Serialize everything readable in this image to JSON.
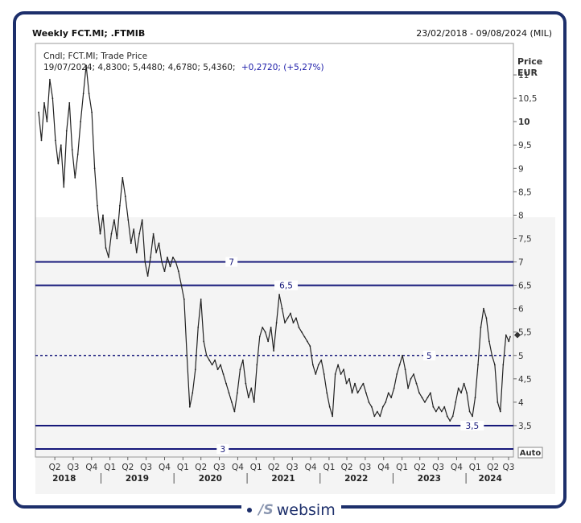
{
  "header": {
    "title": "Weekly FCT.MI; .FTMIB",
    "date_range": "23/02/2018 - 09/08/2024 (MIL)"
  },
  "logo": {
    "text": "websim",
    "icon": "ws-logo-icon"
  },
  "chart_data": {
    "type": "line",
    "legend_line1": "Cndl; FCT.MI; Trade Price",
    "legend_prefix": "19/07/2024; 4,8300; 5,4480; 4,6780; 5,4360;",
    "legend_change": "+0,2720; (+5,27%)",
    "ylabel_line1": "Price",
    "ylabel_line2": "EUR",
    "ylim": [
      3,
      11.5
    ],
    "y_ticks": [
      {
        "value": 11,
        "label": "11",
        "bold": false
      },
      {
        "value": 10.5,
        "label": "10,5",
        "bold": false
      },
      {
        "value": 10,
        "label": "10",
        "bold": true
      },
      {
        "value": 9.5,
        "label": "9,5",
        "bold": false
      },
      {
        "value": 9,
        "label": "9",
        "bold": false
      },
      {
        "value": 8.5,
        "label": "8,5",
        "bold": false
      },
      {
        "value": 8,
        "label": "8",
        "bold": false
      },
      {
        "value": 7.5,
        "label": "7,5",
        "bold": false
      },
      {
        "value": 7,
        "label": "7",
        "bold": false
      },
      {
        "value": 6.5,
        "label": "6,5",
        "bold": false
      },
      {
        "value": 6,
        "label": "6",
        "bold": false
      },
      {
        "value": 5.5,
        "label": "5,5",
        "bold": false
      },
      {
        "value": 5,
        "label": "5",
        "bold": false
      },
      {
        "value": 4.5,
        "label": "4,5",
        "bold": false
      },
      {
        "value": 4,
        "label": "4",
        "bold": false
      },
      {
        "value": 3.5,
        "label": "3,5",
        "bold": false
      }
    ],
    "auto_label": "Auto",
    "x_start": "2018-02-23",
    "x_end": "2024-08-09",
    "quarter_ticks": [
      {
        "date": "2018-05-15",
        "label": "Q2"
      },
      {
        "date": "2018-08-15",
        "label": "Q3"
      },
      {
        "date": "2018-11-15",
        "label": "Q4"
      },
      {
        "date": "2019-02-15",
        "label": "Q1"
      },
      {
        "date": "2019-05-15",
        "label": "Q2"
      },
      {
        "date": "2019-08-15",
        "label": "Q3"
      },
      {
        "date": "2019-11-15",
        "label": "Q4"
      },
      {
        "date": "2020-02-15",
        "label": "Q1"
      },
      {
        "date": "2020-05-15",
        "label": "Q2"
      },
      {
        "date": "2020-08-15",
        "label": "Q3"
      },
      {
        "date": "2020-11-15",
        "label": "Q4"
      },
      {
        "date": "2021-02-15",
        "label": "Q1"
      },
      {
        "date": "2021-05-15",
        "label": "Q2"
      },
      {
        "date": "2021-08-15",
        "label": "Q3"
      },
      {
        "date": "2021-11-15",
        "label": "Q4"
      },
      {
        "date": "2022-02-15",
        "label": "Q1"
      },
      {
        "date": "2022-05-15",
        "label": "Q2"
      },
      {
        "date": "2022-08-15",
        "label": "Q3"
      },
      {
        "date": "2022-11-15",
        "label": "Q4"
      },
      {
        "date": "2023-02-15",
        "label": "Q1"
      },
      {
        "date": "2023-05-15",
        "label": "Q2"
      },
      {
        "date": "2023-08-15",
        "label": "Q3"
      },
      {
        "date": "2023-11-15",
        "label": "Q4"
      },
      {
        "date": "2024-02-15",
        "label": "Q1"
      },
      {
        "date": "2024-05-15",
        "label": "Q2"
      },
      {
        "date": "2024-08-01",
        "label": "Q3"
      }
    ],
    "year_labels": [
      {
        "date": "2018-07-01",
        "label": "2018"
      },
      {
        "date": "2019-07-01",
        "label": "2019"
      },
      {
        "date": "2020-07-01",
        "label": "2020"
      },
      {
        "date": "2021-07-01",
        "label": "2021"
      },
      {
        "date": "2022-07-01",
        "label": "2022"
      },
      {
        "date": "2023-07-01",
        "label": "2023"
      },
      {
        "date": "2024-05-01",
        "label": "2024"
      }
    ],
    "year_boundaries": [
      "2019-01-01",
      "2020-01-01",
      "2021-01-01",
      "2022-01-01",
      "2023-01-01",
      "2024-01-01"
    ],
    "horizontal_lines": [
      {
        "value": 7,
        "label": "7",
        "label_date": "2020-10-15",
        "dashed": false
      },
      {
        "value": 6.5,
        "label": "6,5",
        "label_date": "2021-07-15",
        "dashed": false
      },
      {
        "value": 5,
        "label": "5",
        "label_date": "2023-07-01",
        "dashed": true
      },
      {
        "value": 3.5,
        "label": "3,5",
        "label_date": "2024-02-01",
        "dashed": false
      },
      {
        "value": 3,
        "label": "3",
        "label_date": "2020-09-01",
        "dashed": false
      }
    ],
    "last_price": 5.436,
    "series": [
      {
        "points": [
          [
            "2018-02-23",
            10.2
          ],
          [
            "2018-03-09",
            9.6
          ],
          [
            "2018-03-23",
            10.4
          ],
          [
            "2018-04-06",
            10.0
          ],
          [
            "2018-04-20",
            10.9
          ],
          [
            "2018-05-04",
            10.5
          ],
          [
            "2018-05-18",
            9.6
          ],
          [
            "2018-06-01",
            9.1
          ],
          [
            "2018-06-15",
            9.5
          ],
          [
            "2018-06-29",
            8.6
          ],
          [
            "2018-07-13",
            9.8
          ],
          [
            "2018-07-27",
            10.4
          ],
          [
            "2018-08-10",
            9.4
          ],
          [
            "2018-08-24",
            8.8
          ],
          [
            "2018-09-07",
            9.3
          ],
          [
            "2018-09-21",
            10.0
          ],
          [
            "2018-10-05",
            10.6
          ],
          [
            "2018-10-19",
            11.2
          ],
          [
            "2018-11-02",
            10.6
          ],
          [
            "2018-11-16",
            10.2
          ],
          [
            "2018-11-30",
            9.0
          ],
          [
            "2018-12-14",
            8.2
          ],
          [
            "2018-12-28",
            7.6
          ],
          [
            "2019-01-11",
            8.0
          ],
          [
            "2019-01-25",
            7.3
          ],
          [
            "2019-02-08",
            7.1
          ],
          [
            "2019-02-22",
            7.6
          ],
          [
            "2019-03-08",
            7.9
          ],
          [
            "2019-03-22",
            7.5
          ],
          [
            "2019-04-05",
            8.2
          ],
          [
            "2019-04-19",
            8.8
          ],
          [
            "2019-05-03",
            8.4
          ],
          [
            "2019-05-17",
            7.9
          ],
          [
            "2019-05-31",
            7.4
          ],
          [
            "2019-06-14",
            7.7
          ],
          [
            "2019-06-28",
            7.2
          ],
          [
            "2019-07-12",
            7.6
          ],
          [
            "2019-07-26",
            7.9
          ],
          [
            "2019-08-09",
            7.0
          ],
          [
            "2019-08-23",
            6.7
          ],
          [
            "2019-09-06",
            7.1
          ],
          [
            "2019-09-20",
            7.6
          ],
          [
            "2019-10-04",
            7.2
          ],
          [
            "2019-10-18",
            7.4
          ],
          [
            "2019-11-01",
            7.0
          ],
          [
            "2019-11-15",
            6.8
          ],
          [
            "2019-11-29",
            7.1
          ],
          [
            "2019-12-13",
            6.9
          ],
          [
            "2019-12-27",
            7.1
          ],
          [
            "2020-01-10",
            7.0
          ],
          [
            "2020-01-24",
            6.8
          ],
          [
            "2020-02-07",
            6.5
          ],
          [
            "2020-02-21",
            6.2
          ],
          [
            "2020-03-06",
            5.0
          ],
          [
            "2020-03-20",
            3.9
          ],
          [
            "2020-04-03",
            4.2
          ],
          [
            "2020-04-17",
            4.7
          ],
          [
            "2020-05-01",
            5.6
          ],
          [
            "2020-05-15",
            6.2
          ],
          [
            "2020-05-29",
            5.3
          ],
          [
            "2020-06-12",
            5.0
          ],
          [
            "2020-06-26",
            4.9
          ],
          [
            "2020-07-10",
            4.8
          ],
          [
            "2020-07-24",
            4.9
          ],
          [
            "2020-08-07",
            4.7
          ],
          [
            "2020-08-21",
            4.8
          ],
          [
            "2020-09-04",
            4.6
          ],
          [
            "2020-09-18",
            4.4
          ],
          [
            "2020-10-02",
            4.2
          ],
          [
            "2020-10-16",
            4.0
          ],
          [
            "2020-10-30",
            3.8
          ],
          [
            "2020-11-13",
            4.2
          ],
          [
            "2020-11-27",
            4.7
          ],
          [
            "2020-12-11",
            4.9
          ],
          [
            "2020-12-25",
            4.4
          ],
          [
            "2021-01-08",
            4.1
          ],
          [
            "2021-01-22",
            4.3
          ],
          [
            "2021-02-05",
            4.0
          ],
          [
            "2021-02-19",
            4.8
          ],
          [
            "2021-03-05",
            5.4
          ],
          [
            "2021-03-19",
            5.6
          ],
          [
            "2021-04-02",
            5.5
          ],
          [
            "2021-04-16",
            5.3
          ],
          [
            "2021-04-30",
            5.6
          ],
          [
            "2021-05-14",
            5.1
          ],
          [
            "2021-05-28",
            5.7
          ],
          [
            "2021-06-11",
            6.3
          ],
          [
            "2021-06-25",
            6.0
          ],
          [
            "2021-07-09",
            5.7
          ],
          [
            "2021-07-23",
            5.8
          ],
          [
            "2021-08-06",
            5.9
          ],
          [
            "2021-08-20",
            5.7
          ],
          [
            "2021-09-03",
            5.8
          ],
          [
            "2021-09-17",
            5.6
          ],
          [
            "2021-10-01",
            5.5
          ],
          [
            "2021-10-15",
            5.4
          ],
          [
            "2021-10-29",
            5.3
          ],
          [
            "2021-11-12",
            5.2
          ],
          [
            "2021-11-26",
            4.8
          ],
          [
            "2021-12-10",
            4.6
          ],
          [
            "2021-12-24",
            4.8
          ],
          [
            "2022-01-07",
            4.9
          ],
          [
            "2022-01-21",
            4.6
          ],
          [
            "2022-02-04",
            4.2
          ],
          [
            "2022-02-18",
            3.9
          ],
          [
            "2022-03-04",
            3.7
          ],
          [
            "2022-03-18",
            4.6
          ],
          [
            "2022-04-01",
            4.8
          ],
          [
            "2022-04-15",
            4.6
          ],
          [
            "2022-04-29",
            4.7
          ],
          [
            "2022-05-13",
            4.4
          ],
          [
            "2022-05-27",
            4.5
          ],
          [
            "2022-06-10",
            4.2
          ],
          [
            "2022-06-24",
            4.4
          ],
          [
            "2022-07-08",
            4.2
          ],
          [
            "2022-07-22",
            4.3
          ],
          [
            "2022-08-05",
            4.4
          ],
          [
            "2022-08-19",
            4.2
          ],
          [
            "2022-09-02",
            4.0
          ],
          [
            "2022-09-16",
            3.9
          ],
          [
            "2022-09-30",
            3.7
          ],
          [
            "2022-10-14",
            3.8
          ],
          [
            "2022-10-28",
            3.7
          ],
          [
            "2022-11-11",
            3.9
          ],
          [
            "2022-11-25",
            4.0
          ],
          [
            "2022-12-09",
            4.2
          ],
          [
            "2022-12-23",
            4.1
          ],
          [
            "2023-01-06",
            4.3
          ],
          [
            "2023-01-20",
            4.6
          ],
          [
            "2023-02-03",
            4.8
          ],
          [
            "2023-02-17",
            5.0
          ],
          [
            "2023-03-03",
            4.7
          ],
          [
            "2023-03-17",
            4.3
          ],
          [
            "2023-03-31",
            4.5
          ],
          [
            "2023-04-14",
            4.6
          ],
          [
            "2023-04-28",
            4.4
          ],
          [
            "2023-05-12",
            4.2
          ],
          [
            "2023-05-26",
            4.1
          ],
          [
            "2023-06-09",
            4.0
          ],
          [
            "2023-06-23",
            4.1
          ],
          [
            "2023-07-07",
            4.2
          ],
          [
            "2023-07-21",
            3.9
          ],
          [
            "2023-08-04",
            3.8
          ],
          [
            "2023-08-18",
            3.9
          ],
          [
            "2023-09-01",
            3.8
          ],
          [
            "2023-09-15",
            3.9
          ],
          [
            "2023-09-29",
            3.7
          ],
          [
            "2023-10-13",
            3.6
          ],
          [
            "2023-10-27",
            3.7
          ],
          [
            "2023-11-10",
            4.0
          ],
          [
            "2023-11-24",
            4.3
          ],
          [
            "2023-12-08",
            4.2
          ],
          [
            "2023-12-22",
            4.4
          ],
          [
            "2024-01-05",
            4.2
          ],
          [
            "2024-01-19",
            3.8
          ],
          [
            "2024-02-02",
            3.7
          ],
          [
            "2024-02-16",
            4.1
          ],
          [
            "2024-03-01",
            4.8
          ],
          [
            "2024-03-15",
            5.6
          ],
          [
            "2024-03-29",
            6.0
          ],
          [
            "2024-04-12",
            5.8
          ],
          [
            "2024-04-26",
            5.3
          ],
          [
            "2024-05-10",
            5.0
          ],
          [
            "2024-05-24",
            4.8
          ],
          [
            "2024-06-07",
            4.0
          ],
          [
            "2024-06-21",
            3.8
          ],
          [
            "2024-07-05",
            4.8
          ],
          [
            "2024-07-19",
            5.436
          ],
          [
            "2024-08-02",
            5.3
          ],
          [
            "2024-08-09",
            5.4
          ]
        ]
      }
    ]
  }
}
